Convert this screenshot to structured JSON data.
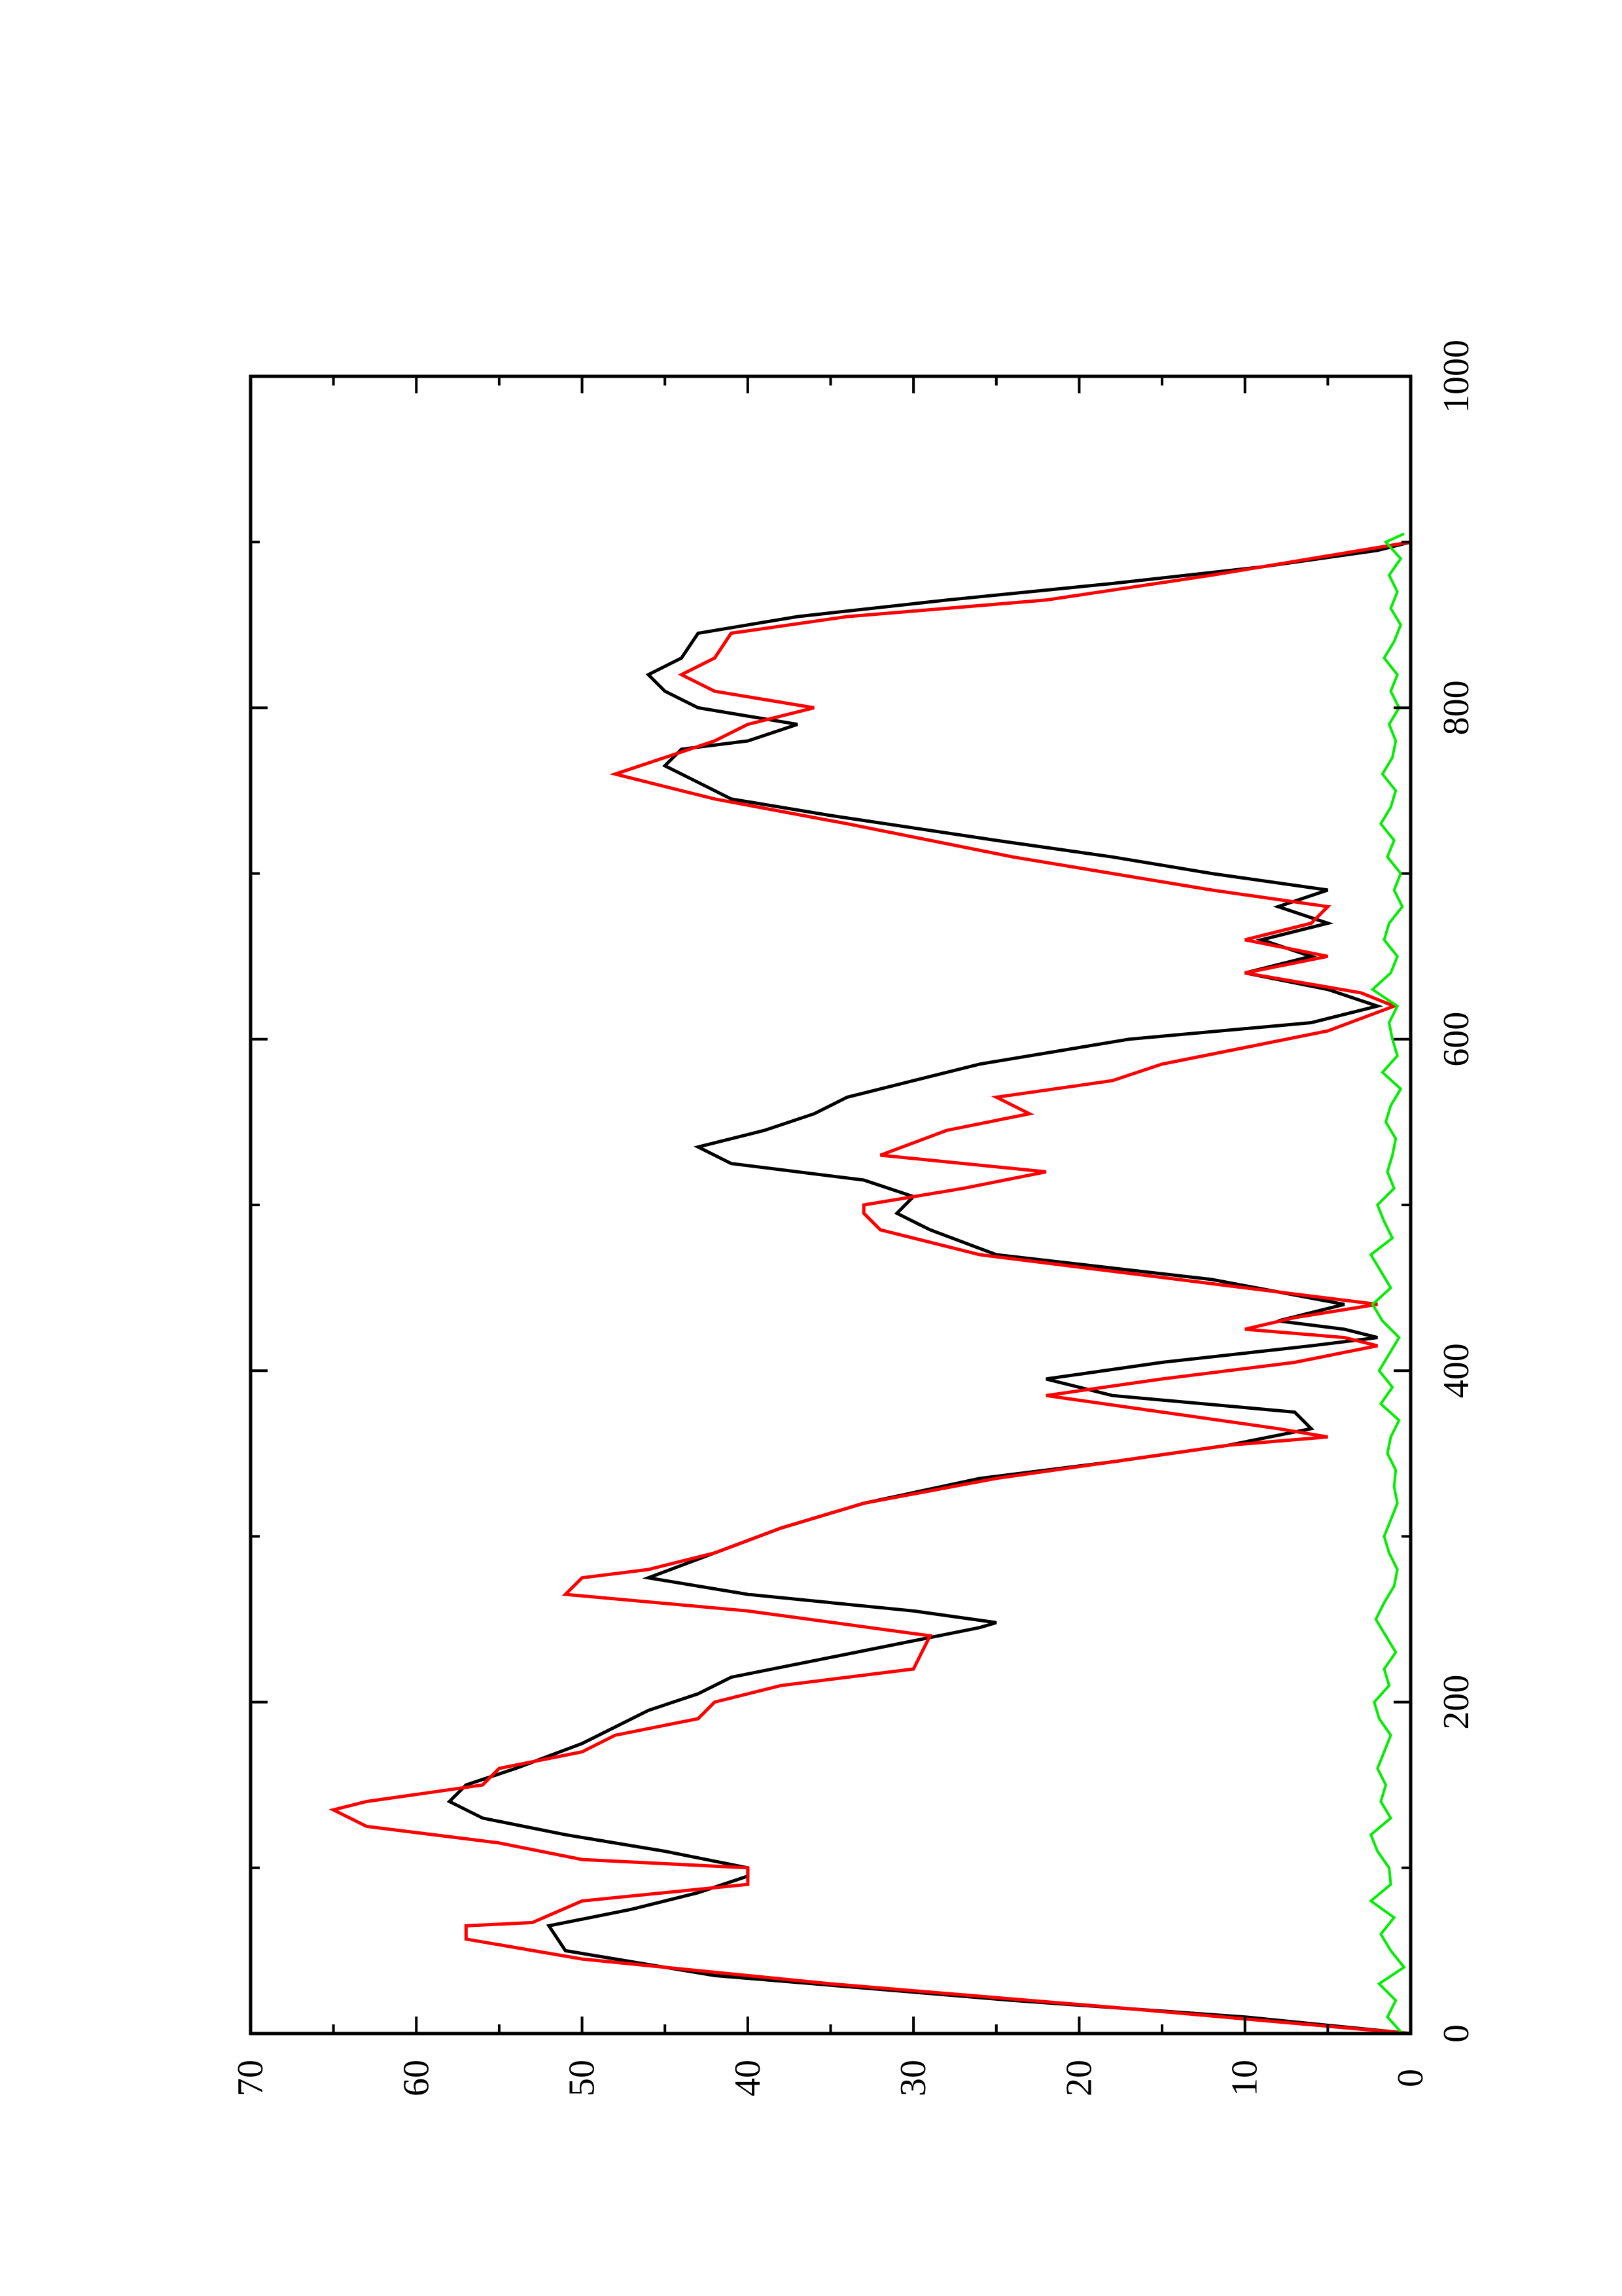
{
  "chart_data": {
    "type": "line",
    "title": "",
    "xlabel": "",
    "ylabel": "",
    "orientation": "rotated 90 degrees counter-clockwise (page in landscape)",
    "xlim": [
      0,
      1000
    ],
    "ylim": [
      0,
      70
    ],
    "x_ticks": [
      0,
      200,
      400,
      600,
      800,
      1000
    ],
    "x_tick_labels": [
      "0",
      "200",
      "400",
      "600",
      "800",
      "1000"
    ],
    "y_ticks": [
      0,
      10,
      20,
      30,
      40,
      50,
      60,
      70
    ],
    "y_tick_labels": [
      "0",
      "10",
      "20",
      "30",
      "40",
      "50",
      "60",
      "70"
    ],
    "grid": false,
    "legend": "none",
    "series": [
      {
        "color": "#000000",
        "style": "noisy line",
        "x": [
          0,
          10,
          20,
          35,
          50,
          65,
          75,
          85,
          95,
          100,
          110,
          120,
          130,
          140,
          150,
          160,
          175,
          185,
          195,
          205,
          215,
          225,
          235,
          245,
          248,
          255,
          265,
          275,
          290,
          305,
          320,
          335,
          345,
          355,
          365,
          375,
          385,
          395,
          405,
          415,
          420,
          425,
          430,
          440,
          455,
          470,
          485,
          495,
          505,
          515,
          525,
          535,
          545,
          555,
          565,
          575,
          585,
          600,
          610,
          620,
          630,
          640,
          650,
          660,
          670,
          680,
          690,
          700,
          710,
          720,
          735,
          745,
          755,
          765,
          775,
          780,
          790,
          795,
          800,
          810,
          820,
          830,
          845,
          855,
          865,
          875,
          885,
          895,
          900,
          905
        ],
        "y": [
          0,
          10,
          24,
          42,
          51,
          52,
          47,
          43,
          40,
          40,
          45,
          51,
          56,
          58,
          57,
          54,
          50,
          48,
          46,
          43,
          41,
          36,
          31,
          26,
          25,
          30,
          40,
          46,
          42,
          38,
          33,
          26,
          18,
          11,
          6,
          7,
          18,
          22,
          15,
          6,
          2,
          4,
          8,
          4,
          12,
          25,
          29,
          31,
          30,
          33,
          41,
          43,
          39,
          36,
          34,
          30,
          26,
          17,
          6,
          2,
          5,
          10,
          6,
          9,
          5,
          8,
          5,
          12,
          18,
          25,
          35,
          41,
          43,
          45,
          44,
          40,
          37,
          40,
          43,
          45,
          46,
          44,
          43,
          37,
          28,
          18,
          9,
          2,
          0,
          0
        ]
      },
      {
        "color": "#ff0000",
        "style": "stepped line",
        "x": [
          0,
          15,
          30,
          45,
          57,
          65,
          67,
          80,
          90,
          100,
          105,
          115,
          125,
          135,
          140,
          150,
          160,
          170,
          180,
          190,
          200,
          210,
          220,
          240,
          255,
          265,
          275,
          280,
          290,
          305,
          320,
          335,
          345,
          355,
          360,
          365,
          375,
          385,
          395,
          405,
          415,
          420,
          425,
          432,
          440,
          450,
          470,
          485,
          495,
          500,
          510,
          520,
          530,
          545,
          555,
          565,
          575,
          585,
          595,
          605,
          620,
          628,
          640,
          650,
          660,
          670,
          680,
          690,
          700,
          710,
          730,
          745,
          760,
          770,
          780,
          790,
          800,
          810,
          820,
          830,
          845,
          855,
          865,
          880,
          895,
          900
        ],
        "y": [
          0,
          17,
          35,
          50,
          57,
          57,
          53,
          50,
          40,
          40,
          50,
          55,
          63,
          65,
          63,
          56,
          55,
          50,
          48,
          43,
          42,
          38,
          30,
          29,
          40,
          51,
          50,
          46,
          42,
          38,
          33,
          25,
          18,
          11,
          5,
          8,
          15,
          22,
          15,
          7,
          2,
          4,
          10,
          7,
          2,
          10,
          26,
          32,
          33,
          33,
          27,
          22,
          32,
          28,
          23,
          25,
          18,
          15,
          10,
          5,
          1,
          3,
          10,
          5,
          10,
          6,
          5,
          12,
          18,
          24,
          34,
          42,
          48,
          45,
          42,
          40,
          36,
          42,
          44,
          42,
          41,
          34,
          22,
          12,
          3,
          0
        ]
      },
      {
        "color": "#00ee00",
        "style": "noise around zero",
        "x": [
          0,
          10,
          20,
          30,
          40,
          50,
          60,
          70,
          80,
          90,
          100,
          110,
          120,
          130,
          140,
          150,
          160,
          170,
          180,
          190,
          200,
          210,
          220,
          230,
          240,
          250,
          260,
          270,
          280,
          290,
          300,
          310,
          320,
          330,
          340,
          350,
          360,
          370,
          380,
          390,
          400,
          410,
          420,
          430,
          440,
          450,
          460,
          470,
          480,
          490,
          500,
          510,
          520,
          530,
          540,
          550,
          560,
          570,
          580,
          590,
          600,
          610,
          620,
          630,
          640,
          650,
          660,
          670,
          680,
          690,
          700,
          710,
          720,
          730,
          740,
          750,
          760,
          770,
          780,
          790,
          800,
          810,
          820,
          830,
          840,
          850,
          860,
          870,
          880,
          890,
          900,
          905
        ],
        "y": [
          0.5,
          1.4,
          0.9,
          1.9,
          0.4,
          1.2,
          1.8,
          1.0,
          2.4,
          1.2,
          1.3,
          2.0,
          2.4,
          1.2,
          1.8,
          1.5,
          2.0,
          1.6,
          1.2,
          1.9,
          2.2,
          1.3,
          1.6,
          0.9,
          1.5,
          2.1,
          1.6,
          1.0,
          0.8,
          1.3,
          1.6,
          1.2,
          0.8,
          1.0,
          0.9,
          1.4,
          1.2,
          0.7,
          1.8,
          1.1,
          1.9,
          1.3,
          0.7,
          1.7,
          2.3,
          1.2,
          1.8,
          2.4,
          1.1,
          1.6,
          2.0,
          1.0,
          1.4,
          1.1,
          0.9,
          1.5,
          1.2,
          0.6,
          1.7,
          0.8,
          1.1,
          1.3,
          0.8,
          2.3,
          1.2,
          0.8,
          1.6,
          1.3,
          0.5,
          1.0,
          0.6,
          1.4,
          1.0,
          1.8,
          1.2,
          0.9,
          1.7,
          1.1,
          0.9,
          1.3,
          0.7,
          1.2,
          0.8,
          1.6,
          1.0,
          0.6,
          1.2,
          0.8,
          1.3,
          0.6,
          1.5,
          0.4
        ]
      }
    ]
  }
}
